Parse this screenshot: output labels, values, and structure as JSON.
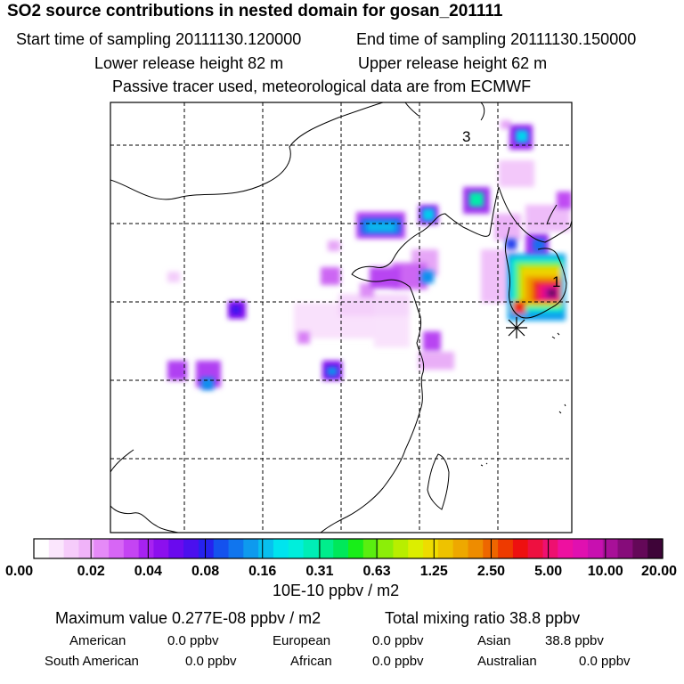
{
  "header": {
    "title": "SO2 source contributions in nested domain for gosan_201111",
    "start_time": "Start time of sampling 20111130.120000",
    "end_time": "End time of sampling 20111130.150000",
    "lower_release": "Lower release height   82 m",
    "upper_release": "Upper release height   62 m",
    "tracer_note": "Passive tracer used, meteorological data are from ECMWF"
  },
  "map": {
    "labels": [
      "3",
      "1"
    ],
    "receptor_marker": "asterisk",
    "colors": {
      "frame": "#000000",
      "grid": "#000000",
      "coast": "#000000"
    }
  },
  "colorbar": {
    "tick_labels": [
      "0.00",
      "0.02",
      "0.04",
      "0.08",
      "0.16",
      "0.31",
      "0.63",
      "1.25",
      "2.50",
      "5.00",
      "10.00",
      "20.00"
    ],
    "colors": [
      "#ffffff",
      "#fbe6fd",
      "#f6ccfb",
      "#f0b3f9",
      "#e58af7",
      "#d766f5",
      "#c444f3",
      "#a722f1",
      "#8c10ee",
      "#6a0aee",
      "#4b10ee",
      "#2622ee",
      "#1452ee",
      "#1075ee",
      "#0e9aee",
      "#08c0ee",
      "#00e4ee",
      "#00eedc",
      "#00eeb6",
      "#00ee8c",
      "#00e85a",
      "#18ee18",
      "#5aee10",
      "#8cee08",
      "#b8ee00",
      "#dcee00",
      "#eedc00",
      "#eec200",
      "#eea800",
      "#ee8c00",
      "#ee6600",
      "#ee3a00",
      "#ee1010",
      "#ee1040",
      "#ee1070",
      "#ee10a0",
      "#e010b0",
      "#c810b0",
      "#a81098",
      "#860c7a",
      "#640858",
      "#3e0438"
    ],
    "units": "10E-10 ppbv / m2"
  },
  "summary": {
    "max_value": "Maximum value  0.277E-08 ppbv / m2",
    "total_mixing": "Total mixing ratio       38.8 ppbv",
    "regions": [
      {
        "name": "American",
        "value": "0.0 ppbv"
      },
      {
        "name": "European",
        "value": "0.0 ppbv"
      },
      {
        "name": "Asian",
        "value": "38.8 ppbv"
      },
      {
        "name": "South American",
        "value": "0.0 ppbv"
      },
      {
        "name": "African",
        "value": "0.0 ppbv"
      },
      {
        "name": "Australian",
        "value": "0.0 ppbv"
      }
    ]
  }
}
